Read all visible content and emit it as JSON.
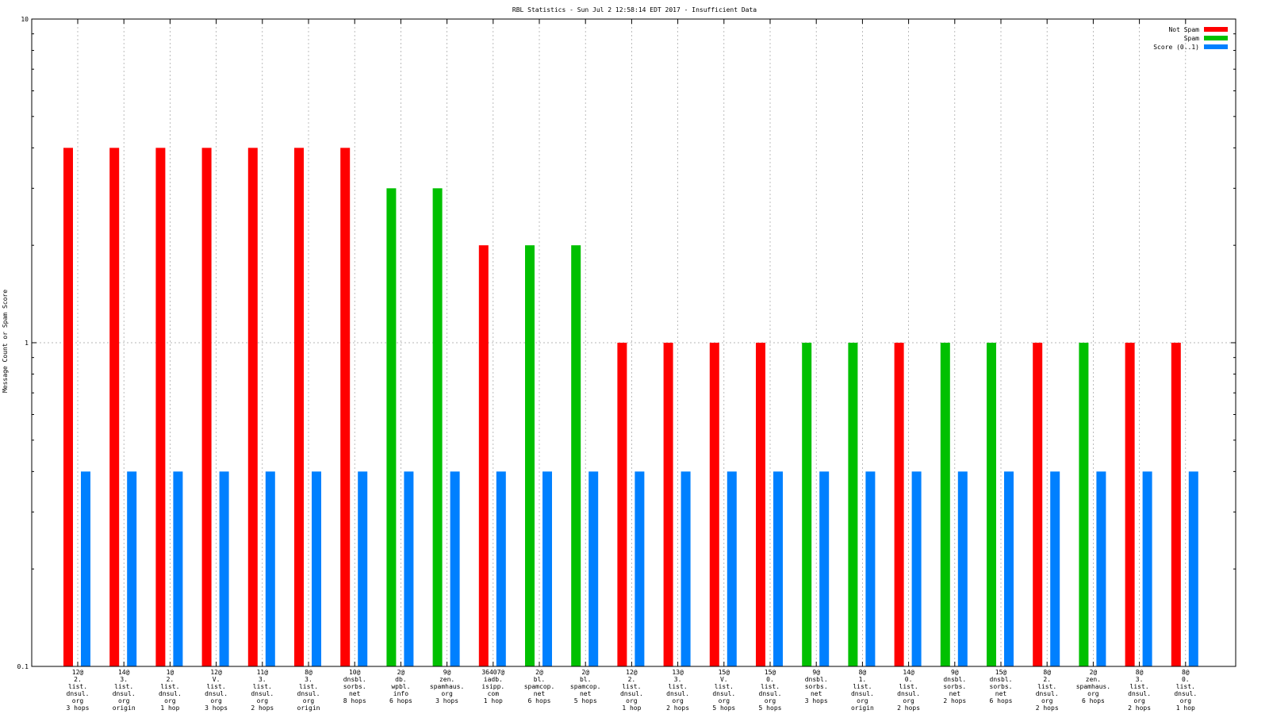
{
  "chart_data": {
    "type": "bar",
    "title": "RBL Statistics - Sun Jul  2 12:58:14 EDT 2017 - Insufficient Data",
    "xlabel": "",
    "ylabel": "Message Count or Spam Score",
    "y_scale": "log",
    "ylim": [
      0.1,
      10
    ],
    "y_ticks": [
      {
        "value": 0.1,
        "label": "0.1"
      },
      {
        "value": 1,
        "label": "1"
      },
      {
        "value": 10,
        "label": "10"
      }
    ],
    "grid": true,
    "legend_position": "top-right",
    "categories": [
      "12@\n2.\nlist.\ndnsul.\norg\n3 hops",
      "14@\n3.\nlist.\ndnsul.\norg\norigin",
      "1@\n2.\nlist.\ndnsul.\norg\n1 hop",
      "12@\nV.\nlist.\ndnsul.\norg\n3 hops",
      "11@\n3.\nlist.\ndnsul.\norg\n2 hops",
      "8@\n3.\nlist.\ndnsul.\norg\norigin",
      "10@\ndnsbl.\nsorbs.\nnet\n8 hops",
      "2@\ndb.\nwpbl.\ninfo\n6 hops",
      "9@\nzen.\nspamhaus.\norg\n3 hops",
      "36407@\niadb.\nisipp.\ncom\n1 hop",
      "2@\nbl.\nspamcop.\nnet\n6 hops",
      "2@\nbl.\nspamcop.\nnet\n5 hops",
      "12@\n2.\nlist.\ndnsul.\norg\n1 hop",
      "13@\n3.\nlist.\ndnsul.\norg\n2 hops",
      "15@\nV.\nlist.\ndnsul.\norg\n5 hops",
      "15@\n0.\nlist.\ndnsul.\norg\n5 hops",
      "9@\ndnsbl.\nsorbs.\nnet\n3 hops",
      "8@\n1.\nlist.\ndnsul.\norg\norigin",
      "14@\n0.\nlist.\ndnsul.\norg\n2 hops",
      "9@\ndnsbl.\nsorbs.\nnet\n2 hops",
      "15@\ndnsbl.\nsorbs.\nnet\n6 hops",
      "8@\n2.\nlist.\ndnsul.\norg\n2 hops",
      "2@\nzen.\nspamhaus.\norg\n6 hops",
      "8@\n3.\nlist.\ndnsul.\norg\n2 hops",
      "8@\n0.\nlist.\ndnsul.\norg\n1 hop"
    ],
    "series": [
      {
        "name": "Not Spam",
        "color": "#ff0000",
        "values": [
          4,
          4,
          4,
          4,
          4,
          4,
          4,
          null,
          null,
          2,
          null,
          null,
          1,
          1,
          1,
          1,
          null,
          null,
          1,
          null,
          null,
          1,
          null,
          1,
          1
        ]
      },
      {
        "name": "Spam",
        "color": "#00c000",
        "values": [
          null,
          null,
          null,
          null,
          null,
          null,
          null,
          3,
          3,
          null,
          2,
          2,
          null,
          null,
          null,
          null,
          1,
          1,
          null,
          1,
          1,
          null,
          1,
          null,
          null
        ]
      },
      {
        "name": "Score (0..1)",
        "color": "#0080ff",
        "values": [
          0.4,
          0.4,
          0.4,
          0.4,
          0.4,
          0.4,
          0.4,
          0.4,
          0.4,
          0.4,
          0.4,
          0.4,
          0.4,
          0.4,
          0.4,
          0.4,
          0.4,
          0.4,
          0.4,
          0.4,
          0.4,
          0.4,
          0.4,
          0.4,
          0.4
        ]
      }
    ]
  }
}
